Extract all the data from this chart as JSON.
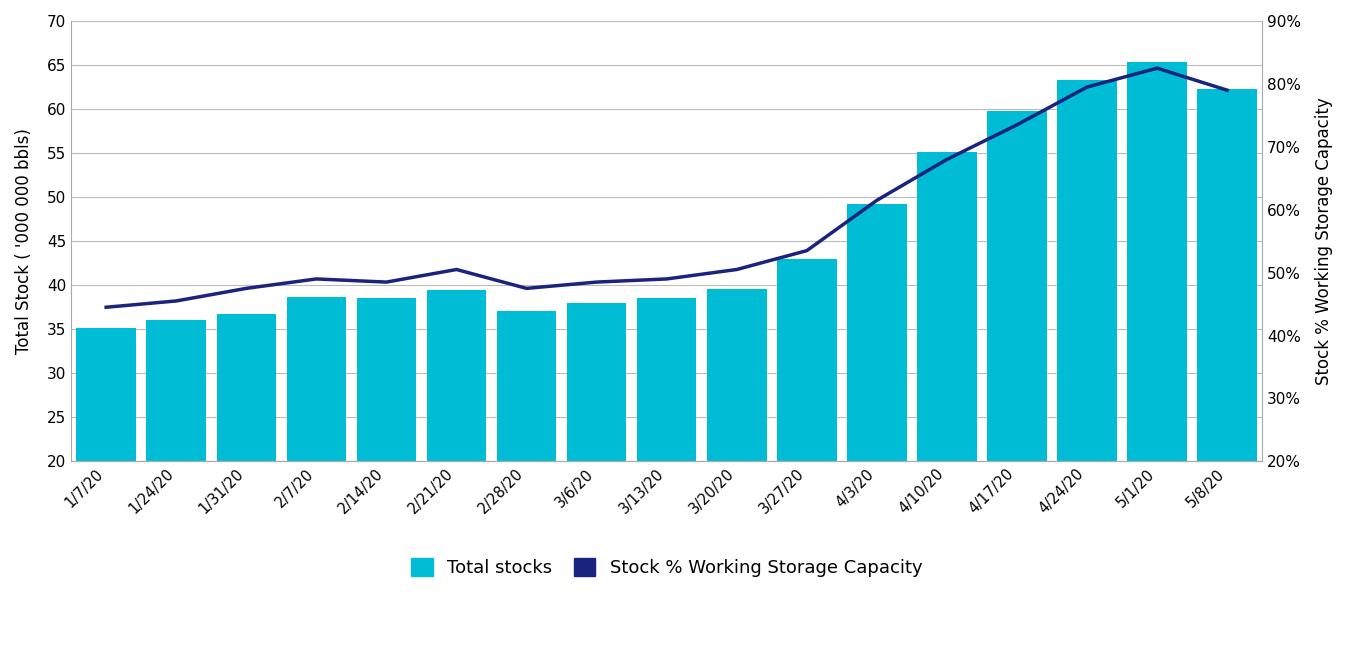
{
  "categories": [
    "1/7/20",
    "1/24/20",
    "1/31/20",
    "2/7/20",
    "2/14/20",
    "2/21/20",
    "2/28/20",
    "3/6/20",
    "3/13/20",
    "3/20/20",
    "3/27/20",
    "4/3/20",
    "4/10/20",
    "4/17/20",
    "4/24/20",
    "5/1/20",
    "5/8/20"
  ],
  "bar_values": [
    35.1,
    36.0,
    36.7,
    38.7,
    38.5,
    39.5,
    37.1,
    38.0,
    38.5,
    39.6,
    43.0,
    49.2,
    55.1,
    59.8,
    63.3,
    65.3,
    62.3
  ],
  "line_values": [
    44.5,
    45.5,
    47.5,
    49.0,
    48.5,
    50.5,
    47.5,
    48.5,
    49.0,
    50.5,
    53.5,
    61.5,
    68.0,
    73.5,
    79.5,
    82.5,
    79.0
  ],
  "bar_color": "#00BCD4",
  "line_color": "#1A237E",
  "ylabel_left": "Total Stock ( '000 000 bbls)",
  "ylabel_right": "Stock % Working Storage Capacity",
  "ylim_left": [
    20,
    70
  ],
  "ylim_right": [
    20,
    90
  ],
  "yticks_left": [
    20,
    25,
    30,
    35,
    40,
    45,
    50,
    55,
    60,
    65,
    70
  ],
  "yticks_right": [
    20,
    30,
    40,
    50,
    60,
    70,
    80,
    90
  ],
  "legend_labels": [
    "Total stocks",
    "Stock % Working Storage Capacity"
  ],
  "grid_color": "#bbbbbb",
  "background_color": "#ffffff",
  "bar_width": 0.85
}
